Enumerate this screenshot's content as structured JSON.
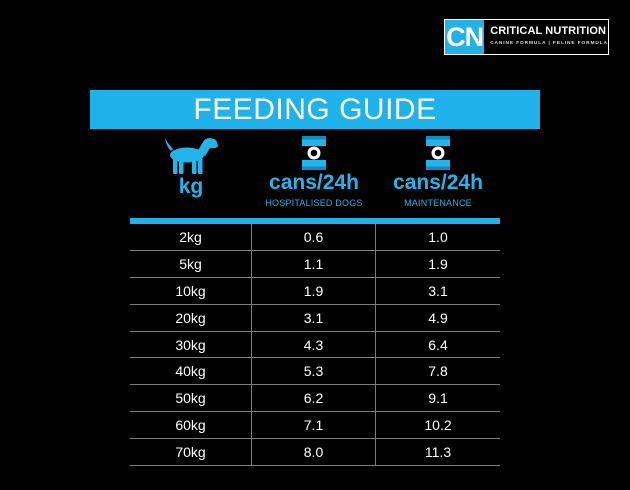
{
  "logo": {
    "mark": "CN",
    "title": "CRITICAL NUTRITION",
    "subtitle": "CANINE FORMULA | FELINE FORMULA"
  },
  "banner": {
    "title": "FEEDING GUIDE"
  },
  "columns": {
    "weight": {
      "icon": "dog-icon",
      "label": "kg"
    },
    "hospitalised": {
      "icon": "can-icon",
      "label": "cans/24h",
      "sub": "HOSPITALISED DOGS"
    },
    "maintenance": {
      "icon": "can-icon",
      "label": "cans/24h",
      "sub": "MAINTENANCE"
    }
  },
  "colors": {
    "accent": "#1fb2ea",
    "background": "#000000",
    "text": "#ffffff"
  },
  "rows": [
    {
      "weight": "2kg",
      "hospitalised": "0.6",
      "maintenance": "1.0"
    },
    {
      "weight": "5kg",
      "hospitalised": "1.1",
      "maintenance": "1.9"
    },
    {
      "weight": "10kg",
      "hospitalised": "1.9",
      "maintenance": "3.1"
    },
    {
      "weight": "20kg",
      "hospitalised": "3.1",
      "maintenance": "4.9"
    },
    {
      "weight": "30kg",
      "hospitalised": "4.3",
      "maintenance": "6.4"
    },
    {
      "weight": "40kg",
      "hospitalised": "5.3",
      "maintenance": "7.8"
    },
    {
      "weight": "50kg",
      "hospitalised": "6.2",
      "maintenance": "9.1"
    },
    {
      "weight": "60kg",
      "hospitalised": "7.1",
      "maintenance": "10.2"
    },
    {
      "weight": "70kg",
      "hospitalised": "8.0",
      "maintenance": "11.3"
    }
  ]
}
